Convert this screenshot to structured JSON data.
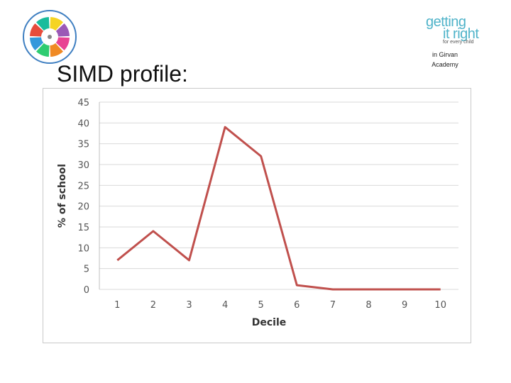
{
  "slide": {
    "title": "SIMD profile:",
    "school_name": "in Girvan Academy"
  },
  "logos": {
    "wheel_icon": "wheel-logo-icon",
    "girfec": {
      "line1": "getting",
      "line2": "it right",
      "line3": "for every child",
      "color": "#4fb3c9"
    }
  },
  "chart_data": {
    "type": "line",
    "title": "",
    "xlabel": "Decile",
    "ylabel": "% of school",
    "categories": [
      "1",
      "2",
      "3",
      "4",
      "5",
      "6",
      "7",
      "8",
      "9",
      "10"
    ],
    "series": [
      {
        "values": [
          7,
          14,
          7,
          39,
          32,
          1,
          0,
          0,
          0,
          0
        ],
        "color": "#c0504d"
      }
    ],
    "ylim": [
      0,
      45
    ],
    "yticks": [
      0,
      5,
      10,
      15,
      20,
      25,
      30,
      35,
      40,
      45
    ],
    "grid": true,
    "gridline_color": "#d9d9d9",
    "legend": "none"
  }
}
